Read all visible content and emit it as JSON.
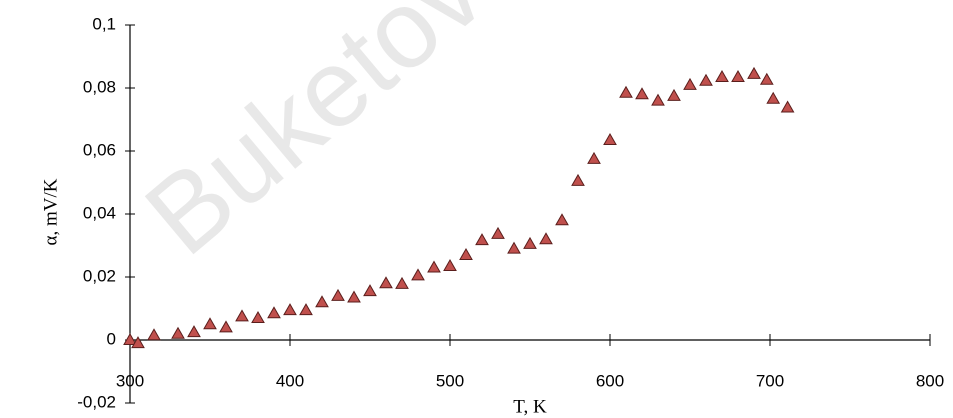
{
  "chart_data": {
    "type": "scatter",
    "x_label": "T, K",
    "y_label": "α, mV/K",
    "watermark": "Buketov",
    "marker": "triangle",
    "color": "#c0504d",
    "edge_color": "#5a1e1c",
    "xlim": [
      300,
      800
    ],
    "xticks": [
      300,
      400,
      500,
      600,
      700,
      800
    ],
    "ylim": [
      -0.02,
      0.1
    ],
    "yticks": [
      {
        "value": -0.02,
        "label": "-0,02"
      },
      {
        "value": 0,
        "label": "0"
      },
      {
        "value": 0.02,
        "label": "0,02"
      },
      {
        "value": 0.04,
        "label": "0,04"
      },
      {
        "value": 0.06,
        "label": "0,06"
      },
      {
        "value": 0.08,
        "label": "0,08"
      },
      {
        "value": 0.1,
        "label": "0,1"
      }
    ],
    "x": [
      300,
      305,
      315,
      330,
      340,
      350,
      360,
      370,
      380,
      390,
      400,
      410,
      420,
      430,
      440,
      450,
      460,
      470,
      480,
      490,
      500,
      510,
      520,
      530,
      540,
      550,
      560,
      570,
      580,
      590,
      600,
      610,
      620,
      630,
      640,
      650,
      660,
      670,
      680,
      690,
      698,
      702,
      711
    ],
    "values": [
      0.0,
      -0.001,
      0.0015,
      0.002,
      0.0025,
      0.005,
      0.004,
      0.0075,
      0.007,
      0.0085,
      0.0095,
      0.0095,
      0.012,
      0.014,
      0.0135,
      0.0155,
      0.018,
      0.0178,
      0.0205,
      0.023,
      0.0235,
      0.027,
      0.0317,
      0.0337,
      0.029,
      0.0305,
      0.032,
      0.038,
      0.0505,
      0.0575,
      0.0635,
      0.0785,
      0.078,
      0.076,
      0.0775,
      0.081,
      0.0823,
      0.0835,
      0.0835,
      0.0845,
      0.0826,
      0.0766,
      0.0738
    ]
  }
}
